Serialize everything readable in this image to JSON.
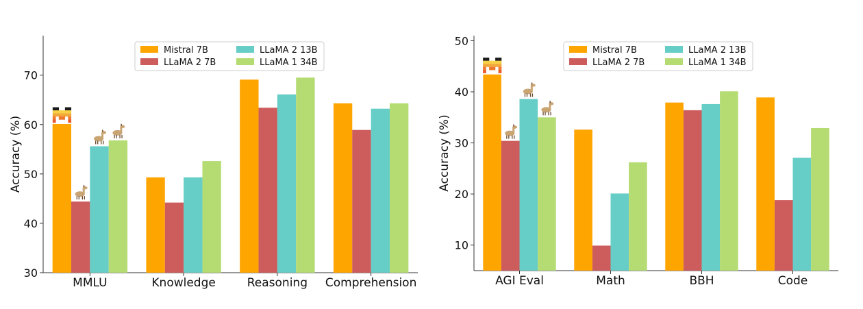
{
  "colors": {
    "mistral": "#FFA500",
    "llama2_7b": "#CD5C5C",
    "llama2_13b": "#66CDC7",
    "llama1_34b": "#B5DB73"
  },
  "chart_data": [
    {
      "type": "bar",
      "ylabel": "Accuracy (%)",
      "ylim": [
        30,
        78
      ],
      "yticks": [
        "30",
        "40",
        "50",
        "60",
        "70"
      ],
      "categories": [
        "MMLU",
        "Knowledge",
        "Reasoning",
        "Comprehension"
      ],
      "series": [
        {
          "name": "Mistral 7B",
          "color": "#FFA500",
          "values": [
            60.1,
            49.3,
            69.1,
            64.3
          ]
        },
        {
          "name": "LLaMA 2 7B",
          "color": "#CD5C5C",
          "values": [
            44.4,
            44.2,
            63.4,
            58.9
          ]
        },
        {
          "name": "LLaMA 2 13B",
          "color": "#66CDC7",
          "values": [
            55.6,
            49.3,
            66.1,
            63.2
          ]
        },
        {
          "name": "LLaMA 1 34B",
          "color": "#B5DB73",
          "values": [
            56.8,
            52.6,
            69.5,
            64.3
          ]
        }
      ],
      "legend": [
        "Mistral 7B",
        "LLaMA 2 7B",
        "LLaMA 2 13B",
        "LLaMA 1 34B"
      ],
      "legend_position": "top-center",
      "annotations": [
        "mistral-logo",
        "llama-icon",
        "llama-icon",
        "llama-icon"
      ]
    },
    {
      "type": "bar",
      "ylabel": "Accuracy (%)",
      "ylim": [
        5,
        51
      ],
      "yticks": [
        "10",
        "20",
        "30",
        "40",
        "50"
      ],
      "categories": [
        "AGI Eval",
        "Math",
        "BBH",
        "Code"
      ],
      "series": [
        {
          "name": "Mistral 7B",
          "color": "#FFA500",
          "values": [
            43.4,
            32.6,
            37.9,
            38.9
          ]
        },
        {
          "name": "LLaMA 2 7B",
          "color": "#CD5C5C",
          "values": [
            30.4,
            9.9,
            36.4,
            18.8
          ]
        },
        {
          "name": "LLaMA 2 13B",
          "color": "#66CDC7",
          "values": [
            38.6,
            20.1,
            37.6,
            27.1
          ]
        },
        {
          "name": "LLaMA 1 34B",
          "color": "#B5DB73",
          "values": [
            35.0,
            26.2,
            40.1,
            32.9
          ]
        }
      ],
      "legend": [
        "Mistral 7B",
        "LLaMA 2 7B",
        "LLaMA 2 13B",
        "LLaMA 1 34B"
      ],
      "legend_position": "top-center",
      "annotations": [
        "mistral-logo",
        "llama-icon",
        "llama-icon",
        "llama-icon"
      ]
    }
  ]
}
